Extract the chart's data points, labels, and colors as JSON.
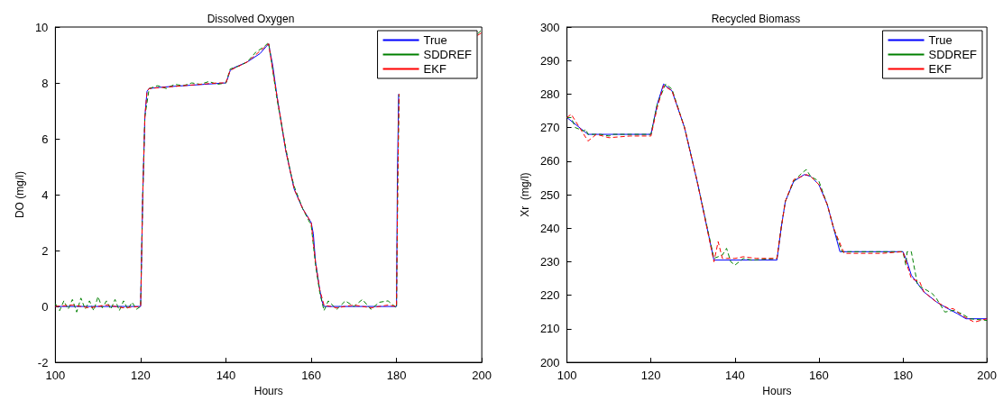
{
  "chart_data": [
    {
      "type": "line",
      "title": "Dissolved Oxygen",
      "xlabel": "Hours",
      "ylabel": "DO (mg/l)",
      "xlim": [
        100,
        200
      ],
      "xticks": [
        100,
        120,
        140,
        160,
        180,
        200
      ],
      "ylim": [
        -2,
        10
      ],
      "yticks": [
        -2,
        0,
        2,
        4,
        6,
        8,
        10
      ],
      "grid": false,
      "legend": "top right",
      "marker": "none",
      "series": [
        {
          "name": "True",
          "color": "#0000ff",
          "line_style": "solid",
          "x": [
            100,
            120,
            120.5,
            121,
            121.5,
            122,
            125,
            130,
            135,
            140,
            140.5,
            141,
            142,
            145,
            148,
            150,
            151,
            152,
            154,
            156,
            158,
            160,
            160.5,
            161,
            162,
            162.5,
            163,
            170,
            180,
            180.2,
            180.5
          ],
          "values": [
            0,
            0,
            4,
            6.8,
            7.7,
            7.8,
            7.85,
            7.9,
            7.95,
            8.0,
            8.2,
            8.45,
            8.55,
            8.75,
            9.05,
            9.4,
            8.6,
            7.5,
            5.6,
            4.2,
            3.5,
            3.0,
            2.6,
            1.6,
            0.6,
            0.2,
            0,
            0,
            0,
            4.5,
            7.6
          ]
        },
        {
          "name": "SDDREF",
          "color": "#008000",
          "line_style": "dashed",
          "x": [
            100,
            101,
            102,
            103,
            104,
            105,
            106,
            107,
            108,
            109,
            110,
            111,
            112,
            113,
            114,
            115,
            116,
            117,
            118,
            119,
            120,
            120.5,
            121,
            122,
            124,
            126,
            128,
            130,
            132,
            134,
            136,
            138,
            140,
            141,
            143,
            145,
            147,
            149,
            150,
            152,
            154,
            155,
            156,
            157,
            158,
            159,
            160,
            161,
            162,
            163,
            164,
            166,
            168,
            170,
            172,
            174,
            176,
            178,
            180,
            180.3,
            180.6,
            181,
            199,
            200
          ],
          "values": [
            0.1,
            -0.15,
            0.2,
            -0.1,
            0.25,
            -0.2,
            0.3,
            -0.1,
            0.2,
            -0.15,
            0.35,
            -0.05,
            0.2,
            -0.1,
            0.25,
            -0.15,
            0.2,
            -0.1,
            0.15,
            -0.1,
            0,
            4,
            6.8,
            7.8,
            7.9,
            7.8,
            7.95,
            7.9,
            8.0,
            7.95,
            8.05,
            7.95,
            8.0,
            8.5,
            8.6,
            8.75,
            9.1,
            9.3,
            9.45,
            7.4,
            5.7,
            4.9,
            4.3,
            3.9,
            3.5,
            3.2,
            2.9,
            1.5,
            0.5,
            -0.15,
            0.2,
            -0.1,
            0.2,
            0,
            0.25,
            -0.1,
            0.15,
            0.2,
            -0.05,
            4.5,
            7.6,
            null,
            9.75,
            9.9
          ]
        },
        {
          "name": "EKF",
          "color": "#ff0000",
          "line_style": "dashed",
          "x": [
            100,
            104,
            108,
            112,
            116,
            120,
            120.5,
            121,
            121.5,
            122,
            126,
            130,
            134,
            138,
            140,
            141,
            145,
            150,
            152,
            154,
            156,
            158,
            160,
            161,
            162,
            163,
            166,
            170,
            174,
            178,
            180,
            180.3,
            180.6,
            181,
            199,
            200
          ],
          "values": [
            0,
            0.05,
            -0.05,
            0.05,
            -0.05,
            0,
            4,
            6.8,
            7.7,
            7.8,
            7.85,
            7.9,
            7.95,
            8.0,
            8.0,
            8.45,
            8.75,
            9.4,
            7.5,
            5.6,
            4.2,
            3.5,
            3.0,
            1.6,
            0.6,
            0.05,
            -0.05,
            0.05,
            -0.05,
            0.05,
            0,
            4.5,
            7.6,
            null,
            9.7,
            9.8
          ]
        }
      ]
    },
    {
      "type": "line",
      "title": "Recycled Biomass",
      "xlabel": "Hours",
      "ylabel": "Xr  (mg/l)",
      "xlim": [
        100,
        200
      ],
      "xticks": [
        100,
        120,
        140,
        160,
        180,
        200
      ],
      "ylim": [
        200,
        300
      ],
      "yticks": [
        200,
        210,
        220,
        230,
        240,
        250,
        260,
        270,
        280,
        290,
        300
      ],
      "grid": false,
      "legend": "top right",
      "marker": "none",
      "series": [
        {
          "name": "True",
          "color": "#0000ff",
          "line_style": "solid",
          "x": [
            100,
            105,
            120,
            121.5,
            123,
            125,
            128,
            131,
            135,
            150,
            151,
            152,
            154,
            156.5,
            158,
            160,
            162,
            163.5,
            165,
            180,
            181,
            182,
            185,
            188,
            190,
            193,
            195,
            200
          ],
          "values": [
            273,
            268,
            268,
            277,
            283,
            281,
            270,
            254,
            230.5,
            230.5,
            240,
            248,
            254,
            256,
            255.5,
            253,
            247,
            240,
            233,
            233,
            230,
            226,
            221,
            218,
            216.5,
            214.5,
            213,
            213
          ]
        },
        {
          "name": "SDDREF",
          "color": "#008000",
          "line_style": "dashed",
          "x": [
            100,
            101,
            102,
            103,
            104,
            104.5,
            105,
            108,
            110,
            111,
            115,
            120,
            121.5,
            123.5,
            125,
            128,
            131,
            135,
            136,
            137,
            138,
            139,
            140,
            142,
            144,
            150,
            151,
            152,
            154,
            156,
            157,
            158,
            160,
            162,
            163.5,
            165.5,
            170,
            180,
            180.7,
            181,
            182,
            183.5,
            185,
            187,
            188,
            189,
            190,
            192,
            194,
            196,
            200
          ],
          "values": [
            273,
            273,
            270,
            269.5,
            269,
            269.5,
            268,
            268,
            267.5,
            268,
            268,
            268,
            277,
            283,
            281.5,
            270,
            254,
            231,
            231.5,
            232,
            234,
            230,
            229,
            231,
            230.5,
            231,
            240,
            248,
            254,
            256.5,
            257.5,
            255.5,
            254,
            247,
            240,
            233,
            233,
            233,
            229,
            233,
            233,
            223,
            222,
            220.5,
            219,
            217,
            215,
            215.5,
            214.5,
            213,
            212.5
          ]
        },
        {
          "name": "EKF",
          "color": "#ff0000",
          "line_style": "dashed",
          "x": [
            100,
            101,
            103,
            105,
            107,
            110,
            115,
            120,
            121.5,
            123,
            125,
            128,
            131,
            135,
            136,
            137,
            138,
            140,
            142,
            145,
            150,
            151,
            152,
            154,
            156,
            157,
            158,
            160,
            162,
            163.5,
            166,
            170,
            175,
            180,
            181,
            182,
            184,
            185,
            188,
            191,
            192,
            194,
            197,
            200
          ],
          "values": [
            273,
            274,
            270,
            266,
            268,
            267,
            267.5,
            267.5,
            276,
            282.5,
            281,
            270,
            254,
            230,
            236,
            231,
            231,
            231,
            231.5,
            231,
            231,
            240,
            248,
            254.5,
            255.5,
            256,
            255.5,
            253,
            247,
            240,
            232.5,
            232.5,
            232.5,
            233,
            229,
            225,
            224,
            221,
            218,
            216,
            216,
            214,
            212,
            213
          ]
        }
      ]
    }
  ]
}
